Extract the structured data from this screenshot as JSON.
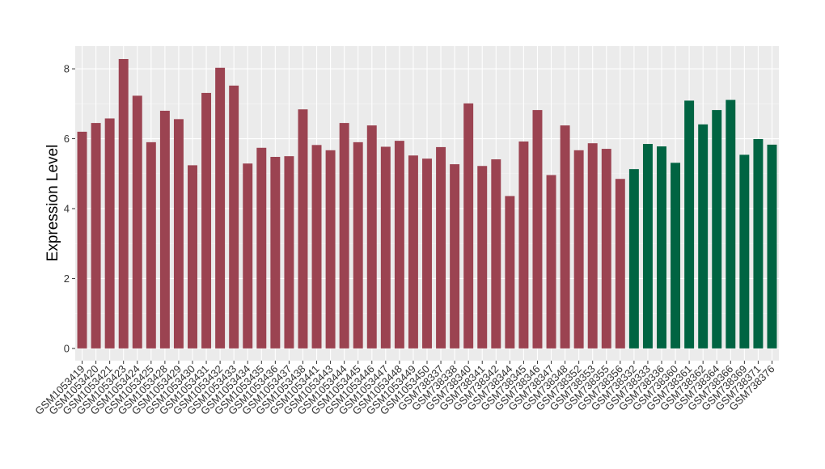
{
  "chart_data": {
    "type": "bar",
    "title": "",
    "xlabel": "",
    "ylabel": "Expression Level",
    "ylim": [
      -0.35,
      8.65
    ],
    "yticks": [
      0,
      2,
      4,
      6,
      8
    ],
    "grid": true,
    "categories": [
      "GSM1053419",
      "GSM1053420",
      "GSM1053421",
      "GSM1053423",
      "GSM1053424",
      "GSM1053425",
      "GSM1053428",
      "GSM1053429",
      "GSM1053430",
      "GSM1053431",
      "GSM1053432",
      "GSM1053433",
      "GSM1053434",
      "GSM1053435",
      "GSM1053436",
      "GSM1053437",
      "GSM1053438",
      "GSM1053441",
      "GSM1053443",
      "GSM1053444",
      "GSM1053445",
      "GSM1053446",
      "GSM1053447",
      "GSM1053448",
      "GSM1053449",
      "GSM1053450",
      "GSM738337",
      "GSM738338",
      "GSM738340",
      "GSM738341",
      "GSM738342",
      "GSM738344",
      "GSM738345",
      "GSM738346",
      "GSM738347",
      "GSM738348",
      "GSM738352",
      "GSM738353",
      "GSM738355",
      "GSM738356",
      "GSM738332",
      "GSM738333",
      "GSM738336",
      "GSM738360",
      "GSM738361",
      "GSM738362",
      "GSM738364",
      "GSM738366",
      "GSM738369",
      "GSM738371",
      "GSM738376"
    ],
    "values": [
      6.2,
      6.45,
      6.58,
      8.28,
      7.23,
      5.9,
      6.8,
      6.56,
      5.24,
      7.31,
      8.03,
      7.52,
      5.29,
      5.74,
      5.48,
      5.5,
      6.84,
      5.82,
      5.67,
      6.45,
      5.9,
      6.38,
      5.77,
      5.94,
      5.52,
      5.43,
      5.76,
      5.27,
      7.01,
      5.22,
      5.41,
      4.36,
      5.92,
      6.82,
      4.96,
      6.38,
      5.67,
      5.87,
      5.71,
      4.85,
      5.13,
      5.85,
      5.78,
      5.31,
      7.09,
      6.41,
      6.82,
      7.11,
      5.54,
      5.99,
      5.83
    ],
    "bar_colors": [
      "#9b4351",
      "#9b4351",
      "#9b4351",
      "#9b4351",
      "#9b4351",
      "#9b4351",
      "#9b4351",
      "#9b4351",
      "#9b4351",
      "#9b4351",
      "#9b4351",
      "#9b4351",
      "#9b4351",
      "#9b4351",
      "#9b4351",
      "#9b4351",
      "#9b4351",
      "#9b4351",
      "#9b4351",
      "#9b4351",
      "#9b4351",
      "#9b4351",
      "#9b4351",
      "#9b4351",
      "#9b4351",
      "#9b4351",
      "#9b4351",
      "#9b4351",
      "#9b4351",
      "#9b4351",
      "#9b4351",
      "#9b4351",
      "#9b4351",
      "#9b4351",
      "#9b4351",
      "#9b4351",
      "#9b4351",
      "#9b4351",
      "#9b4351",
      "#9b4351",
      "#006442",
      "#006442",
      "#006442",
      "#006442",
      "#006442",
      "#006442",
      "#006442",
      "#006442",
      "#006442",
      "#006442",
      "#006442"
    ]
  }
}
